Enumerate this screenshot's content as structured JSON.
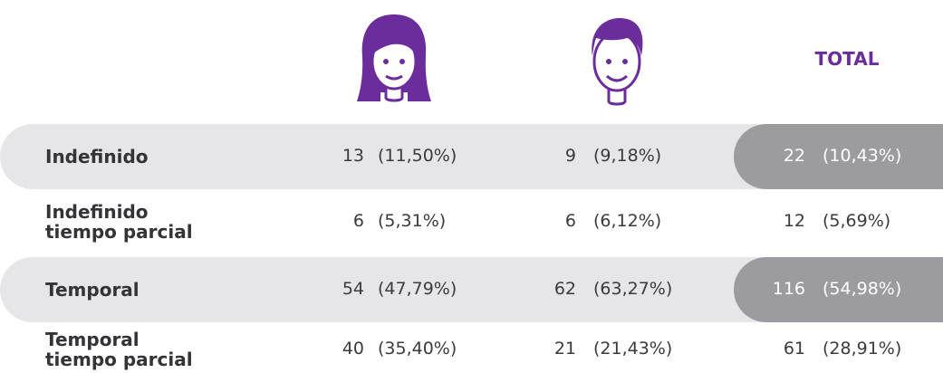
{
  "header": {
    "total": "TOTAL"
  },
  "table": {
    "rows": [
      {
        "label": [
          "Indefinido"
        ],
        "cells": [
          [
            "13",
            "(11,50%)"
          ],
          [
            "9",
            "(9,18%)"
          ],
          [
            "22",
            "(10,43%)"
          ]
        ]
      },
      {
        "label": [
          "Indefinido",
          "tiempo parcial"
        ],
        "cells": [
          [
            "6",
            "(5,31%)"
          ],
          [
            "6",
            "(6,12%)"
          ],
          [
            "12",
            "(5,69%)"
          ]
        ]
      },
      {
        "label": [
          "Temporal"
        ],
        "cells": [
          [
            "54",
            "(47,79%)"
          ],
          [
            "62",
            "(63,27%)"
          ],
          [
            "116",
            "(54,98%)"
          ]
        ]
      },
      {
        "label": [
          "Temporal",
          "tiempo parcial"
        ],
        "cells": [
          [
            "40",
            "(35,40%)"
          ],
          [
            "21",
            "(21,43%)"
          ],
          [
            "61",
            "(28,91%)"
          ]
        ]
      }
    ]
  }
}
